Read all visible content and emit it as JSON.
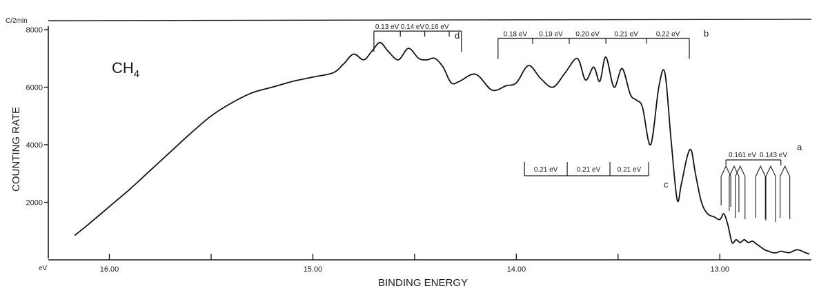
{
  "chart_data": {
    "type": "line",
    "y_unit": "C/2min",
    "ylabel": "COUNTING RATE",
    "xlabel": "BINDING ENERGY",
    "x_unit": "eV",
    "sample_label": "CH",
    "sample_subscript": "4",
    "x_reversed": true,
    "xlim": [
      16.3,
      12.55
    ],
    "ylim": [
      0,
      8500
    ],
    "x_ticks": [
      {
        "value": 16.0,
        "label": "16.00"
      },
      {
        "value": 15.5,
        "label": ""
      },
      {
        "value": 15.0,
        "label": "15.00"
      },
      {
        "value": 14.5,
        "label": ""
      },
      {
        "value": 14.0,
        "label": "14.00"
      },
      {
        "value": 13.5,
        "label": ""
      },
      {
        "value": 13.0,
        "label": "13.00"
      }
    ],
    "y_ticks": [
      {
        "value": 2000,
        "label": "2000"
      },
      {
        "value": 4000,
        "label": "4000"
      },
      {
        "value": 6000,
        "label": "6000"
      },
      {
        "value": 8000,
        "label": "8000"
      }
    ],
    "series": [
      {
        "x": [
          16.17,
          16.1,
          16.0,
          15.9,
          15.8,
          15.7,
          15.6,
          15.5,
          15.4,
          15.3,
          15.2,
          15.1,
          15.0,
          14.9,
          14.85,
          14.8,
          14.75,
          14.71,
          14.67,
          14.63,
          14.58,
          14.53,
          14.48,
          14.44,
          14.4,
          14.36,
          14.32,
          14.28,
          14.2,
          14.12,
          14.05,
          14.0,
          13.94,
          13.88,
          13.82,
          13.76,
          13.7,
          13.66,
          13.62,
          13.59,
          13.56,
          13.52,
          13.48,
          13.44,
          13.41,
          13.38,
          13.34,
          13.3,
          13.27,
          13.24,
          13.21,
          13.19,
          13.16,
          13.14,
          13.12,
          13.09,
          13.06,
          13.03,
          13.0,
          12.98,
          12.96,
          12.94,
          12.92,
          12.9,
          12.88,
          12.86,
          12.84,
          12.82,
          12.8,
          12.78,
          12.76,
          12.74,
          12.72,
          12.7,
          12.66,
          12.62,
          12.58,
          12.56
        ],
        "y": [
          850,
          1250,
          1850,
          2450,
          3100,
          3750,
          4400,
          5000,
          5450,
          5800,
          6000,
          6200,
          6350,
          6500,
          6800,
          7150,
          6950,
          7250,
          7550,
          7250,
          6950,
          7350,
          7000,
          6950,
          7000,
          6700,
          6150,
          6200,
          6450,
          5900,
          6050,
          6150,
          6750,
          6300,
          6000,
          6500,
          7000,
          6250,
          6700,
          6200,
          7050,
          6000,
          6650,
          5750,
          5550,
          5300,
          4000,
          6000,
          6500,
          4200,
          2100,
          2600,
          3600,
          3800,
          3000,
          2000,
          1600,
          1500,
          1400,
          1600,
          1200,
          600,
          700,
          600,
          700,
          600,
          650,
          550,
          450,
          350,
          300,
          250,
          250,
          300,
          250,
          350,
          250,
          200
        ]
      }
    ],
    "annotations": {
      "d": {
        "letter": "d",
        "ticks_x": [
          14.7,
          14.57,
          14.45,
          14.33,
          14.27
        ],
        "labels": [
          "0.13 eV",
          "0.14 eV",
          "0.16 eV"
        ],
        "y": 7950
      },
      "b": {
        "letter": "b",
        "ticks_x": [
          14.09,
          13.92,
          13.74,
          13.56,
          13.36,
          13.15
        ],
        "labels": [
          "0.18 eV",
          "0.19 eV",
          "0.20 eV",
          "0.21 eV",
          "0.22 eV"
        ],
        "y": 7700
      },
      "c": {
        "letter": "c",
        "ticks_x": [
          13.96,
          13.75,
          13.54,
          13.35
        ],
        "labels": [
          "0.21 eV",
          "0.21 eV",
          "0.21 eV"
        ],
        "y": 3350
      },
      "a": {
        "letter": "a",
        "labels": [
          "0.161 eV",
          "0.143 eV"
        ],
        "bracket_x": [
          12.97,
          12.7
        ],
        "y": 3450
      }
    }
  }
}
